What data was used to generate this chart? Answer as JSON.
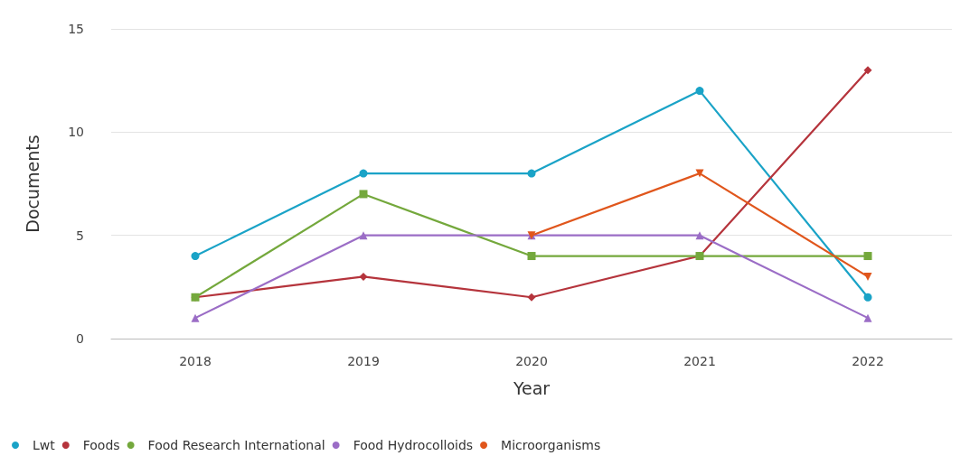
{
  "chart_data": {
    "type": "line",
    "xlabel": "Year",
    "ylabel": "Documents",
    "categories": [
      "2018",
      "2019",
      "2020",
      "2021",
      "2022"
    ],
    "series": [
      {
        "name": "Lwt",
        "color": "#1aa3c7",
        "marker": "circle",
        "values": [
          4,
          8,
          8,
          12,
          2
        ]
      },
      {
        "name": "Foods",
        "color": "#b5343c",
        "marker": "diamond",
        "values": [
          2,
          3,
          2,
          4,
          13
        ]
      },
      {
        "name": "Food Research International",
        "color": "#74a83c",
        "marker": "square",
        "values": [
          2,
          7,
          4,
          4,
          4
        ]
      },
      {
        "name": "Food Hydrocolloids",
        "color": "#9b6dc6",
        "marker": "triangle",
        "values": [
          1,
          5,
          5,
          5,
          1
        ]
      },
      {
        "name": "Microorganisms",
        "color": "#e0561c",
        "marker": "triangle_down",
        "values": [
          null,
          null,
          5,
          8,
          3
        ]
      }
    ],
    "ylim": [
      0,
      15
    ],
    "yticks": [
      0,
      5,
      10,
      15
    ],
    "grid": "y",
    "legend": "bottom left",
    "line_style": "solid"
  }
}
